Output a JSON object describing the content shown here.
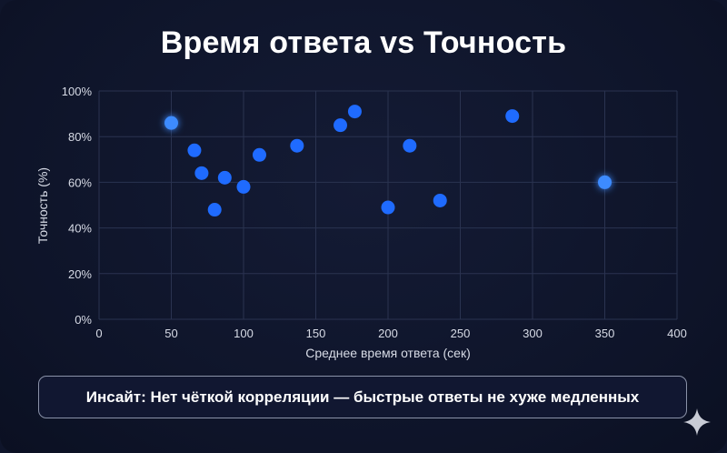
{
  "header": {
    "title": "Время ответа vs Точность"
  },
  "insight": {
    "text": "Инсайт: Нет чёткой корреляции — быстрые ответы не хуже медленных"
  },
  "colors": {
    "point": "#1f6bff",
    "highlight": "#3d8bff",
    "grid": "#2a3350",
    "axis_text": "#d7dbe6"
  },
  "icons": {
    "corner": "sparkle-icon"
  },
  "chart_data": {
    "type": "scatter",
    "xlabel": "Среднее время ответа (сек)",
    "ylabel": "Точность (%)",
    "xlim": [
      0,
      400
    ],
    "ylim": [
      0,
      100
    ],
    "xticks": [
      0,
      50,
      100,
      150,
      200,
      250,
      300,
      350,
      400
    ],
    "yticks": [
      0,
      20,
      40,
      60,
      80,
      100
    ],
    "ytick_labels": [
      "0%",
      "20%",
      "40%",
      "60%",
      "80%",
      "100%"
    ],
    "grid": true,
    "points": [
      {
        "x": 50,
        "y": 86,
        "highlight": true
      },
      {
        "x": 66,
        "y": 74
      },
      {
        "x": 71,
        "y": 64
      },
      {
        "x": 80,
        "y": 48
      },
      {
        "x": 87,
        "y": 62
      },
      {
        "x": 100,
        "y": 58
      },
      {
        "x": 111,
        "y": 72
      },
      {
        "x": 137,
        "y": 76
      },
      {
        "x": 167,
        "y": 85
      },
      {
        "x": 177,
        "y": 91
      },
      {
        "x": 200,
        "y": 49
      },
      {
        "x": 215,
        "y": 76
      },
      {
        "x": 236,
        "y": 52
      },
      {
        "x": 286,
        "y": 89
      },
      {
        "x": 350,
        "y": 60,
        "highlight": true
      }
    ]
  }
}
